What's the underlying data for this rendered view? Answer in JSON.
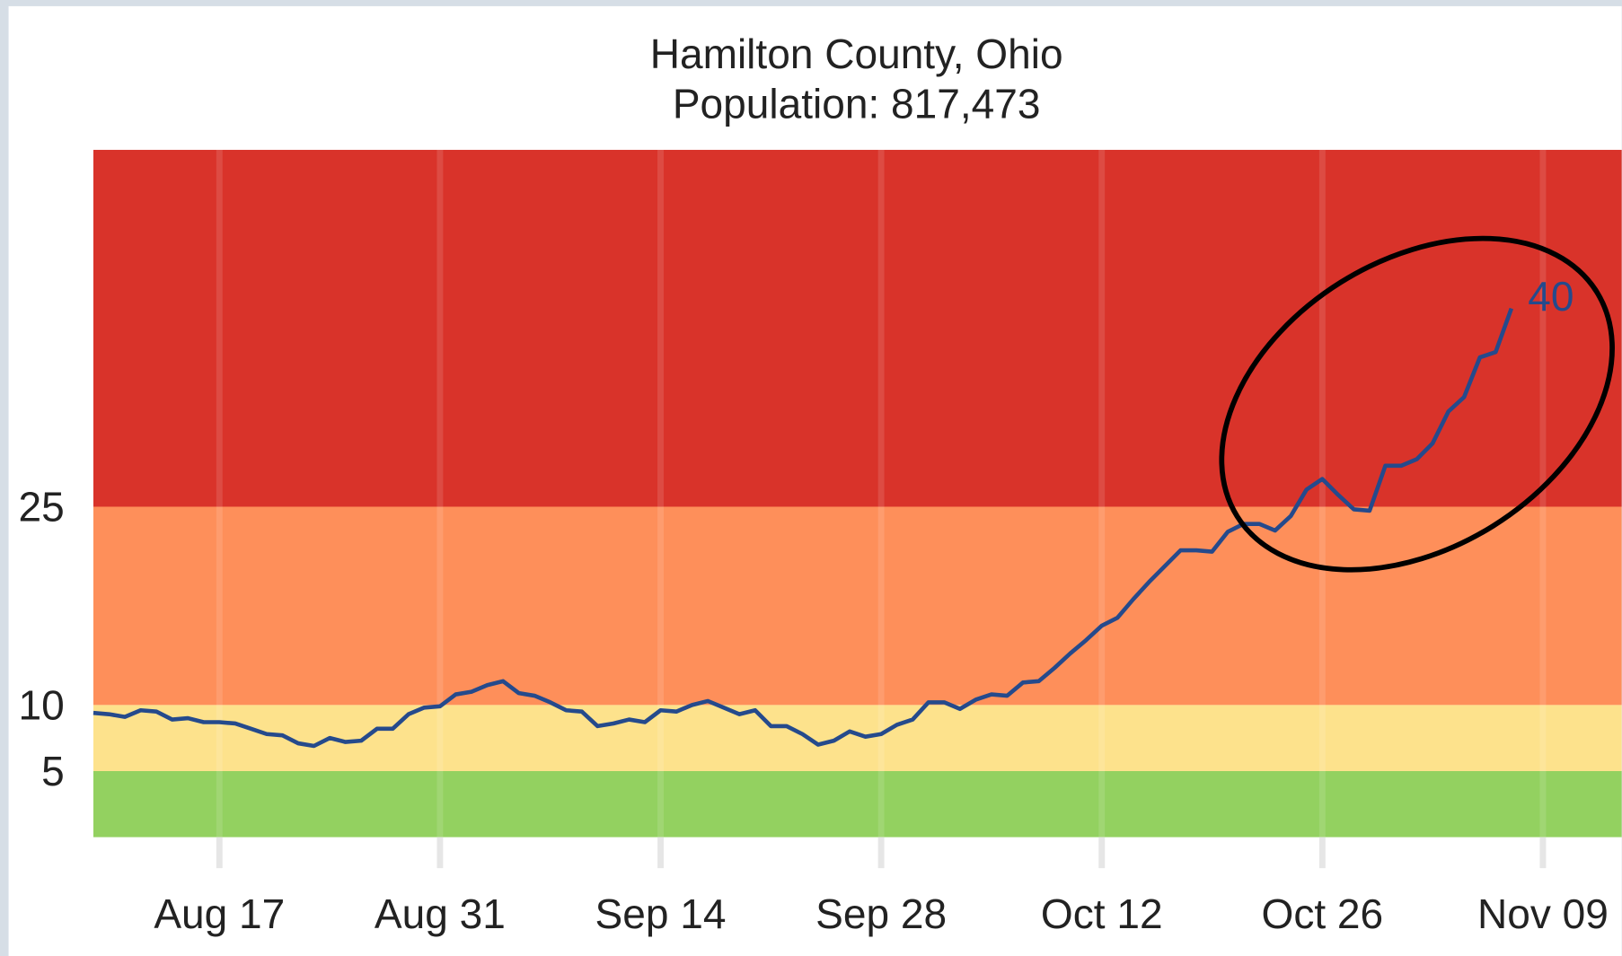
{
  "chart_data": {
    "type": "line",
    "title": [
      "Hamilton County, Ohio",
      "Population: 817,473"
    ],
    "x": [
      "Aug 09",
      "Aug 10",
      "Aug 11",
      "Aug 12",
      "Aug 13",
      "Aug 14",
      "Aug 15",
      "Aug 16",
      "Aug 17",
      "Aug 18",
      "Aug 19",
      "Aug 20",
      "Aug 21",
      "Aug 22",
      "Aug 23",
      "Aug 24",
      "Aug 25",
      "Aug 26",
      "Aug 27",
      "Aug 28",
      "Aug 29",
      "Aug 30",
      "Aug 31",
      "Sep 01",
      "Sep 02",
      "Sep 03",
      "Sep 04",
      "Sep 05",
      "Sep 06",
      "Sep 07",
      "Sep 08",
      "Sep 09",
      "Sep 10",
      "Sep 11",
      "Sep 12",
      "Sep 13",
      "Sep 14",
      "Sep 15",
      "Sep 16",
      "Sep 17",
      "Sep 18",
      "Sep 19",
      "Sep 20",
      "Sep 21",
      "Sep 22",
      "Sep 23",
      "Sep 24",
      "Sep 25",
      "Sep 26",
      "Sep 27",
      "Sep 28",
      "Sep 29",
      "Sep 30",
      "Oct 01",
      "Oct 02",
      "Oct 03",
      "Oct 04",
      "Oct 05",
      "Oct 06",
      "Oct 07",
      "Oct 08",
      "Oct 09",
      "Oct 10",
      "Oct 11",
      "Oct 12",
      "Oct 13",
      "Oct 14",
      "Oct 15",
      "Oct 16",
      "Oct 17",
      "Oct 18",
      "Oct 19",
      "Oct 20",
      "Oct 21",
      "Oct 22",
      "Oct 23",
      "Oct 24",
      "Oct 25",
      "Oct 26",
      "Oct 27",
      "Oct 28",
      "Oct 29",
      "Oct 30",
      "Oct 31",
      "Nov 01",
      "Nov 02",
      "Nov 03",
      "Nov 04",
      "Nov 05",
      "Nov 06",
      "Nov 07"
    ],
    "values": [
      9.4,
      9.3,
      9.1,
      9.6,
      9.5,
      8.9,
      9.0,
      8.7,
      8.7,
      8.6,
      8.2,
      7.8,
      7.7,
      7.1,
      6.9,
      7.5,
      7.2,
      7.3,
      8.2,
      8.2,
      9.3,
      9.8,
      9.9,
      10.8,
      11.0,
      11.5,
      11.8,
      10.9,
      10.7,
      10.2,
      9.6,
      9.5,
      8.4,
      8.6,
      8.9,
      8.7,
      9.6,
      9.5,
      10.0,
      10.3,
      9.8,
      9.3,
      9.6,
      8.4,
      8.4,
      7.8,
      7.0,
      7.3,
      8.0,
      7.6,
      7.8,
      8.5,
      8.9,
      10.2,
      10.2,
      9.7,
      10.4,
      10.8,
      10.7,
      11.7,
      11.8,
      12.8,
      13.9,
      14.9,
      16.0,
      16.6,
      18.0,
      19.3,
      20.5,
      21.7,
      21.7,
      21.6,
      23.1,
      23.7,
      23.7,
      23.2,
      24.3,
      26.3,
      27.1,
      25.9,
      24.8,
      24.7,
      28.1,
      28.1,
      28.6,
      29.8,
      32.2,
      33.3,
      36.3,
      36.7,
      40
    ],
    "color": "#254a8c",
    "xlim": [
      "Aug 09",
      "Nov 14"
    ],
    "xticks": [
      "Aug 17",
      "Aug 31",
      "Sep 14",
      "Sep 28",
      "Oct 12",
      "Oct 26",
      "Nov 09"
    ],
    "ylim": [
      0,
      52
    ],
    "yticks": [
      5,
      10,
      25
    ],
    "bands": [
      {
        "range": [
          0,
          5
        ],
        "color": "#93d160"
      },
      {
        "range": [
          5,
          10
        ],
        "color": "#fde28c"
      },
      {
        "range": [
          10,
          25
        ],
        "color": "#fe8f5a"
      },
      {
        "range": [
          25,
          52
        ],
        "color": "#d9332a"
      }
    ]
  }
}
